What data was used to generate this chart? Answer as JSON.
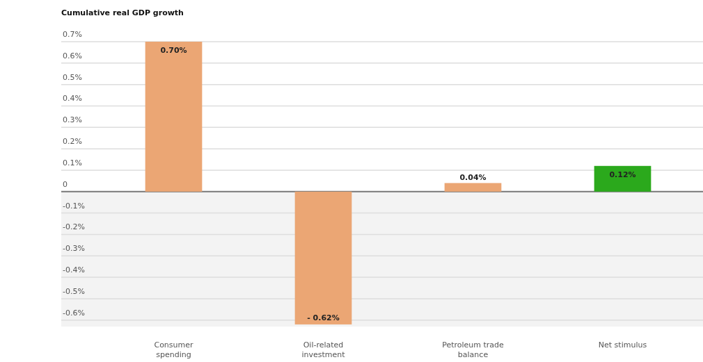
{
  "chart_data": {
    "type": "bar",
    "title": "Cumulative real GDP growth",
    "categories": [
      "Consumer spending",
      "Oil-related investment",
      "Petroleum trade balance",
      "Net stimulus"
    ],
    "values": [
      0.7,
      -0.62,
      0.04,
      0.12
    ],
    "colors": [
      "#eba674",
      "#eba674",
      "#eba674",
      "#2ba91c"
    ],
    "value_labels": [
      "0.70%",
      "- 0.62%",
      "0.04%",
      "0.12%"
    ],
    "ylim": [
      -0.63,
      0.7
    ],
    "yticks": [
      {
        "value": 0.7,
        "label": "0.7%"
      },
      {
        "value": 0.6,
        "label": "0.6%"
      },
      {
        "value": 0.5,
        "label": "0.5%"
      },
      {
        "value": 0.4,
        "label": "0.4%"
      },
      {
        "value": 0.3,
        "label": "0.3%"
      },
      {
        "value": 0.2,
        "label": "0.2%"
      },
      {
        "value": 0.1,
        "label": "0.1%"
      },
      0,
      {
        "value": -0.1,
        "label": "-0.1%"
      },
      {
        "value": -0.2,
        "label": "-0.2%"
      },
      {
        "value": -0.3,
        "label": "-0.3%"
      },
      {
        "value": -0.4,
        "label": "-0.4%"
      },
      {
        "value": -0.5,
        "label": "-0.5%"
      },
      {
        "value": -0.6,
        "label": "-0.6%"
      }
    ],
    "bands": [
      {
        "axis": "y",
        "from": -0.63,
        "to": 0,
        "color": "#f3f3f3"
      }
    ],
    "grid": "y"
  }
}
